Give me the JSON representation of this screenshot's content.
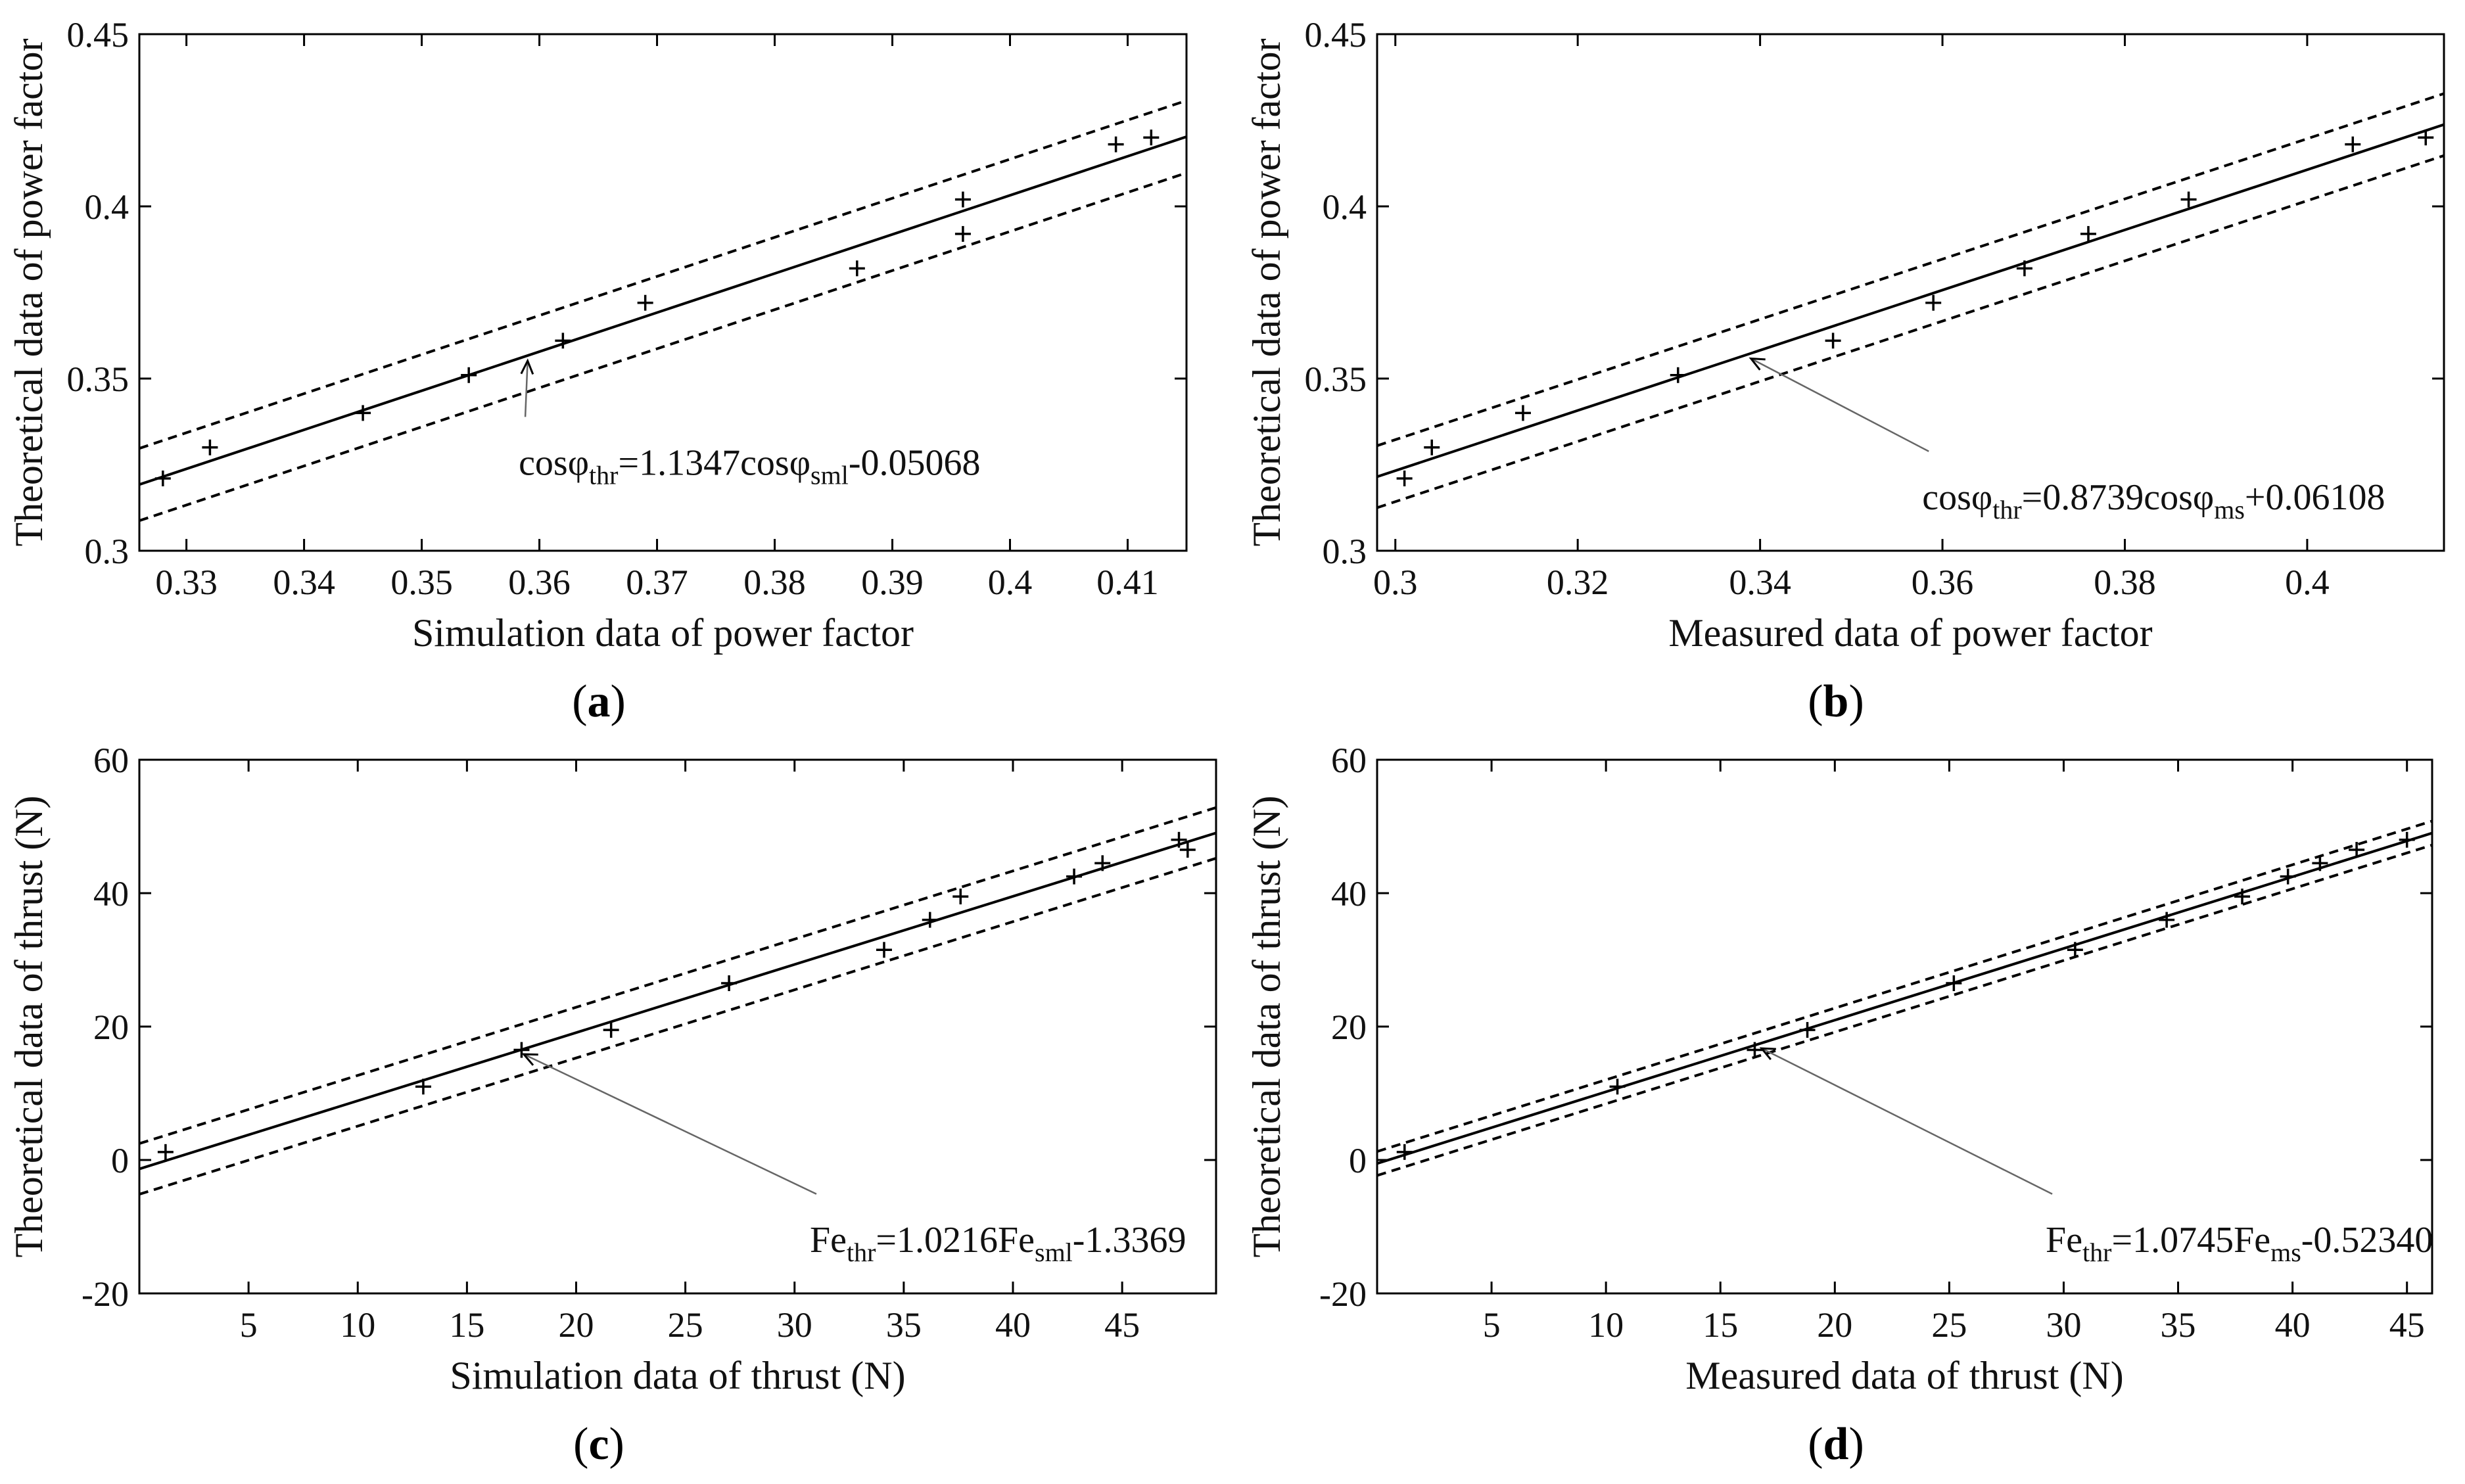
{
  "chart_data": [
    {
      "type": "scatter",
      "panel": "a",
      "xlabel": "Simulation data of power factor",
      "ylabel": "Theoretical data of power factor",
      "xlim": [
        0.326,
        0.415
      ],
      "ylim": [
        0.3,
        0.45
      ],
      "xticks": [
        0.33,
        0.34,
        0.35,
        0.36,
        0.37,
        0.38,
        0.39,
        0.4,
        0.41
      ],
      "xtick_labels": [
        "0.33",
        "0.34",
        "0.35",
        "0.36",
        "0.37",
        "0.38",
        "0.39",
        "0.4",
        "0.41"
      ],
      "yticks": [
        0.3,
        0.35,
        0.4,
        0.45
      ],
      "ytick_labels": [
        "0.3",
        "0.35",
        "0.4",
        "0.45"
      ],
      "points": {
        "x": [
          0.328,
          0.332,
          0.345,
          0.354,
          0.362,
          0.369,
          0.387,
          0.396,
          0.396,
          0.409,
          0.412
        ],
        "y": [
          0.321,
          0.33,
          0.34,
          0.351,
          0.361,
          0.372,
          0.382,
          0.392,
          0.402,
          0.418,
          0.42
        ]
      },
      "fit": {
        "slope": 1.1347,
        "intercept": -0.05068,
        "band": 0.0105
      },
      "equation": {
        "lhs": "cosφ",
        "lhs_sub": "thr",
        "mid": "=1.1347cosφ",
        "mid_sub": "sml",
        "rhs": "-0.05068"
      },
      "annotation": {
        "text_x": 0.3588,
        "text_y": 0.3255,
        "arrow_x": 0.359
      },
      "label_prefix": "(",
      "label_letter": "a",
      "label_suffix": ")"
    },
    {
      "type": "scatter",
      "panel": "b",
      "xlabel": "Measured data of power factor",
      "ylabel": "Theoretical data of power factor",
      "xlim": [
        0.298,
        0.415
      ],
      "ylim": [
        0.3,
        0.45
      ],
      "xticks": [
        0.3,
        0.32,
        0.34,
        0.36,
        0.38,
        0.4
      ],
      "xtick_labels": [
        "0.3",
        "0.32",
        "0.34",
        "0.36",
        "0.38",
        "0.4"
      ],
      "yticks": [
        0.3,
        0.35,
        0.4,
        0.45
      ],
      "ytick_labels": [
        "0.3",
        "0.35",
        "0.4",
        "0.45"
      ],
      "points": {
        "x": [
          0.301,
          0.304,
          0.314,
          0.331,
          0.348,
          0.359,
          0.369,
          0.376,
          0.387,
          0.405,
          0.413
        ],
        "y": [
          0.321,
          0.33,
          0.34,
          0.351,
          0.361,
          0.372,
          0.382,
          0.392,
          0.402,
          0.418,
          0.42
        ]
      },
      "fit": {
        "slope": 0.8739,
        "intercept": 0.06108,
        "band": 0.009
      },
      "equation": {
        "lhs": "cosφ",
        "lhs_sub": "thr",
        "mid": "=0.8739cosφ",
        "mid_sub": "ms",
        "rhs": "+0.06108"
      },
      "annotation": {
        "text_x": 0.3585,
        "text_y": 0.3155,
        "arrow_x": 0.339
      },
      "label_prefix": "(",
      "label_letter": "b",
      "label_suffix": ")"
    },
    {
      "type": "scatter",
      "panel": "c",
      "xlabel": "Simulation data of thrust (N)",
      "ylabel": "Theoretical data of thrust (N)",
      "xlim": [
        0,
        49.3
      ],
      "ylim": [
        -20,
        60
      ],
      "xticks": [
        5,
        10,
        15,
        20,
        25,
        30,
        35,
        40,
        45
      ],
      "xtick_labels": [
        "5",
        "10",
        "15",
        "20",
        "25",
        "30",
        "35",
        "40",
        "45"
      ],
      "yticks": [
        -20,
        0,
        20,
        40,
        60
      ],
      "ytick_labels": [
        "-20",
        "0",
        "20",
        "40",
        "60"
      ],
      "points": {
        "x": [
          1.2,
          13.0,
          17.5,
          21.6,
          27.0,
          34.1,
          36.2,
          37.6,
          42.8,
          44.1,
          47.6,
          48.0
        ],
        "y": [
          1.2,
          11.0,
          16.5,
          19.5,
          26.5,
          31.5,
          36.0,
          39.5,
          42.5,
          44.5,
          48.0,
          46.5
        ]
      },
      "fit": {
        "slope": 1.0216,
        "intercept": -1.3369,
        "band": 3.8
      },
      "equation": {
        "lhs": "Fe",
        "lhs_sub": "thr",
        "mid": "=1.0216Fe",
        "mid_sub": "sml",
        "rhs": "-1.3369"
      },
      "annotation": {
        "text_x": 31.0,
        "text_y": -12.0,
        "arrow_x": 17.6
      },
      "label_prefix": "(",
      "label_letter": "c",
      "label_suffix": ")"
    },
    {
      "type": "scatter",
      "panel": "d",
      "xlabel": "Measured data of thrust (N)",
      "ylabel": "Theoretical data of thrust (N)",
      "xlim": [
        0,
        46.1
      ],
      "ylim": [
        -20,
        60
      ],
      "xticks": [
        5,
        10,
        15,
        20,
        25,
        30,
        35,
        40,
        45
      ],
      "xtick_labels": [
        "5",
        "10",
        "15",
        "20",
        "25",
        "30",
        "35",
        "40",
        "45"
      ],
      "yticks": [
        -20,
        0,
        20,
        40,
        60
      ],
      "ytick_labels": [
        "-20",
        "0",
        "20",
        "40",
        "60"
      ],
      "points": {
        "x": [
          1.2,
          10.5,
          16.5,
          18.8,
          25.2,
          30.5,
          34.5,
          37.8,
          39.8,
          41.2,
          42.8,
          45.0
        ],
        "y": [
          1.2,
          11.0,
          16.5,
          19.5,
          26.5,
          31.5,
          36.0,
          39.5,
          42.5,
          44.5,
          46.5,
          48.0
        ]
      },
      "fit": {
        "slope": 1.0745,
        "intercept": -0.5234,
        "band": 1.8
      },
      "equation": {
        "lhs": "Fe",
        "lhs_sub": "thr",
        "mid": "=1.0745Fe",
        "mid_sub": "ms",
        "rhs": "-0.52340"
      },
      "annotation": {
        "text_x": 29.5,
        "text_y": -12.0,
        "arrow_x": 16.8
      },
      "label_prefix": "(",
      "label_letter": "d",
      "label_suffix": ")"
    }
  ]
}
